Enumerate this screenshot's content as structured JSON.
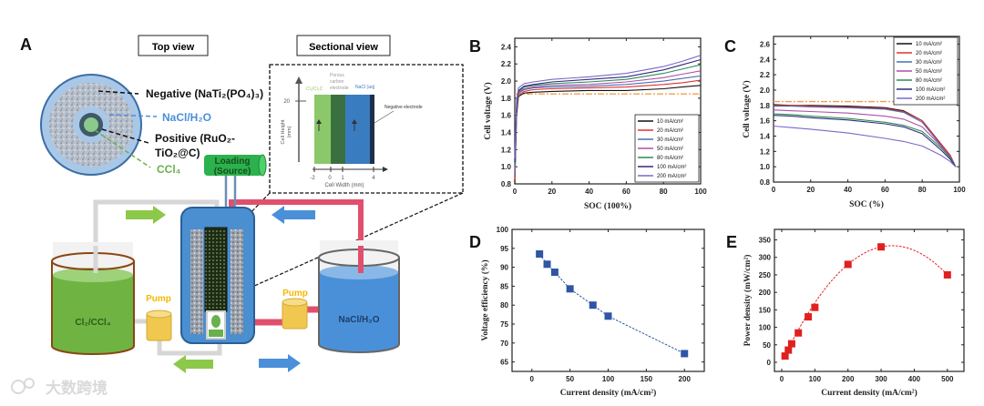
{
  "panel_a": {
    "letter": "A",
    "top_view_label": "Top view",
    "sectional_view_label": "Sectional view",
    "negative_label": "Negative (NaTi₂(PO₄)₃)",
    "nacl_label": "NaCl/H₂O",
    "positive_label_1": "Positive (RuO₂-",
    "positive_label_2": "TiO₂@C)",
    "ccl4_label": "CCl₄",
    "loading_label_1": "Loading",
    "loading_label_2": "(Source)",
    "left_pump_label": "Pump",
    "right_pump_label": "Pump",
    "left_tank_label": "Cl₂/CCl₄",
    "right_tank_label": "NaCl/H₂O",
    "sectional": {
      "layer_cl": "Cl₂/Cl₂C",
      "layer_porous_1": "Porous",
      "layer_porous_2": "carbon",
      "layer_porous_3": "electrode",
      "layer_nacl": "NaCl (aq)",
      "negative_electrode": "Negative electrode",
      "y_axis_1": "Cell Height",
      "y_axis_2": "(mm)",
      "y_tick": "20",
      "x_axis": "Cell Width (mm)",
      "x_ticks": [
        "-2",
        "0",
        "1",
        "4"
      ]
    },
    "colors": {
      "green": "#6ab04c",
      "blue": "#4a90d9",
      "pink": "#e0506e",
      "pump": "#f0c850",
      "pump_label": "#f5b800"
    }
  },
  "watermark": "大数跨境",
  "chart_data": [
    {
      "id": "B",
      "letter": "B",
      "type": "line",
      "xlabel": "SOC (100%)",
      "ylabel": "Cell voltage (V)",
      "xlim": [
        0,
        100
      ],
      "ylim": [
        0.8,
        2.5
      ],
      "xticks": [
        0,
        20,
        40,
        60,
        80,
        100
      ],
      "yticks": [
        0.8,
        1.0,
        1.2,
        1.4,
        1.6,
        1.8,
        2.0,
        2.2,
        2.4
      ],
      "ytick_labels": [
        "0.8",
        "1.0",
        "1.2",
        "1.4",
        "1.6",
        "1.8",
        "2.0",
        "2.2",
        "2.4"
      ],
      "reference_line": {
        "y": 1.85,
        "color": "#f0a050"
      },
      "legend_position": "bottom-right",
      "x": [
        0,
        1,
        2,
        5,
        10,
        20,
        40,
        60,
        80,
        90,
        100
      ],
      "series": [
        {
          "name": "10 mA/cm²",
          "color": "#111111",
          "values": [
            0.8,
            1.6,
            1.82,
            1.86,
            1.87,
            1.88,
            1.89,
            1.89,
            1.91,
            1.93,
            1.95
          ]
        },
        {
          "name": "20 mA/cm²",
          "color": "#e03030",
          "values": [
            0.85,
            1.65,
            1.84,
            1.88,
            1.9,
            1.91,
            1.92,
            1.93,
            1.96,
            1.98,
            2.01
          ]
        },
        {
          "name": "30 mA/cm²",
          "color": "#4a6fb5",
          "values": [
            0.9,
            1.68,
            1.86,
            1.9,
            1.92,
            1.93,
            1.94,
            1.96,
            2.0,
            2.03,
            2.06
          ]
        },
        {
          "name": "50 mA/cm²",
          "color": "#b04fa8",
          "values": [
            0.95,
            1.7,
            1.87,
            1.91,
            1.93,
            1.95,
            1.96,
            1.99,
            2.04,
            2.08,
            2.12
          ]
        },
        {
          "name": "80 mA/cm²",
          "color": "#2e8b57",
          "values": [
            1.0,
            1.72,
            1.88,
            1.93,
            1.95,
            1.97,
            1.99,
            2.02,
            2.09,
            2.14,
            2.19
          ]
        },
        {
          "name": "100 mA/cm²",
          "color": "#2d2d7a",
          "values": [
            1.05,
            1.74,
            1.89,
            1.94,
            1.96,
            1.99,
            2.02,
            2.05,
            2.13,
            2.19,
            2.25
          ]
        },
        {
          "name": "200 mA/cm²",
          "color": "#7b68c8",
          "values": [
            1.1,
            1.78,
            1.92,
            1.97,
            1.99,
            2.02,
            2.05,
            2.09,
            2.17,
            2.23,
            2.3
          ]
        }
      ]
    },
    {
      "id": "C",
      "letter": "C",
      "type": "line",
      "xlabel": "SOC (%)",
      "ylabel": "Cell voltage (V)",
      "xlim": [
        0,
        100
      ],
      "ylim": [
        0.8,
        2.7
      ],
      "xticks": [
        0,
        20,
        40,
        60,
        80,
        100
      ],
      "yticks": [
        0.8,
        1.0,
        1.2,
        1.4,
        1.6,
        1.8,
        2.0,
        2.2,
        2.4,
        2.6
      ],
      "ytick_labels": [
        "0.8",
        "1.0",
        "1.2",
        "1.4",
        "1.6",
        "1.8",
        "2.0",
        "2.2",
        "2.4",
        "2.6"
      ],
      "reference_line": {
        "y": 1.85,
        "color": "#f0a050"
      },
      "legend_position": "top-right",
      "x": [
        0,
        10,
        20,
        40,
        60,
        70,
        80,
        90,
        95,
        98
      ],
      "series": [
        {
          "name": "10 mA/cm²",
          "color": "#111111",
          "values": [
            1.81,
            1.8,
            1.8,
            1.79,
            1.77,
            1.73,
            1.6,
            1.3,
            1.15,
            1.0
          ]
        },
        {
          "name": "20 mA/cm²",
          "color": "#e03030",
          "values": [
            1.8,
            1.8,
            1.79,
            1.78,
            1.76,
            1.72,
            1.6,
            1.3,
            1.15,
            1.0
          ]
        },
        {
          "name": "30 mA/cm²",
          "color": "#4a6fb5",
          "values": [
            1.79,
            1.79,
            1.78,
            1.77,
            1.75,
            1.71,
            1.58,
            1.28,
            1.13,
            1.0
          ]
        },
        {
          "name": "50 mA/cm²",
          "color": "#b04fa8",
          "values": [
            1.74,
            1.73,
            1.72,
            1.7,
            1.66,
            1.62,
            1.52,
            1.27,
            1.13,
            1.0
          ]
        },
        {
          "name": "80 mA/cm²",
          "color": "#2e8b57",
          "values": [
            1.69,
            1.68,
            1.66,
            1.63,
            1.58,
            1.54,
            1.46,
            1.25,
            1.12,
            1.0
          ]
        },
        {
          "name": "100 mA/cm²",
          "color": "#2d2d7a",
          "values": [
            1.67,
            1.66,
            1.64,
            1.61,
            1.56,
            1.52,
            1.43,
            1.22,
            1.1,
            1.0
          ]
        },
        {
          "name": "200 mA/cm²",
          "color": "#7b68c8",
          "values": [
            1.53,
            1.51,
            1.49,
            1.44,
            1.37,
            1.33,
            1.27,
            1.15,
            1.07,
            1.0
          ]
        }
      ]
    },
    {
      "id": "D",
      "letter": "D",
      "type": "scatter",
      "xlabel": "Current density (mA/cm²)",
      "ylabel": "Voltage efficiency (%)",
      "xlim": [
        -26,
        226
      ],
      "ylim": [
        62.5,
        100
      ],
      "xticks": [
        0,
        50,
        100,
        150,
        200
      ],
      "yticks": [
        65,
        70,
        75,
        80,
        85,
        90,
        95,
        100
      ],
      "ytick_labels": [
        "65",
        "70",
        "75",
        "80",
        "85",
        "90",
        "95",
        "100"
      ],
      "color": "#2f55a4",
      "x": [
        10,
        20,
        30,
        50,
        80,
        100,
        200
      ],
      "y": [
        93.5,
        90.8,
        88.7,
        84.3,
        80.0,
        77.1,
        67.2
      ]
    },
    {
      "id": "E",
      "letter": "E",
      "type": "scatter",
      "xlabel": "Current density (mA/cm²)",
      "ylabel": "Power density (mW/cm²)",
      "xlim": [
        -22,
        550
      ],
      "ylim": [
        -26,
        380
      ],
      "xticks": [
        0,
        100,
        200,
        300,
        400,
        500
      ],
      "yticks": [
        0,
        50,
        100,
        150,
        200,
        250,
        300,
        350
      ],
      "ytick_labels": [
        "0",
        "50",
        "100",
        "150",
        "200",
        "250",
        "300",
        "350"
      ],
      "color": "#e02020",
      "x": [
        10,
        20,
        30,
        50,
        80,
        100,
        200,
        300,
        500
      ],
      "y": [
        18,
        35,
        53,
        84,
        130,
        157,
        280,
        330,
        250
      ],
      "fit": {
        "type": "quadratic",
        "a": 2.0,
        "b": -0.003
      }
    }
  ]
}
